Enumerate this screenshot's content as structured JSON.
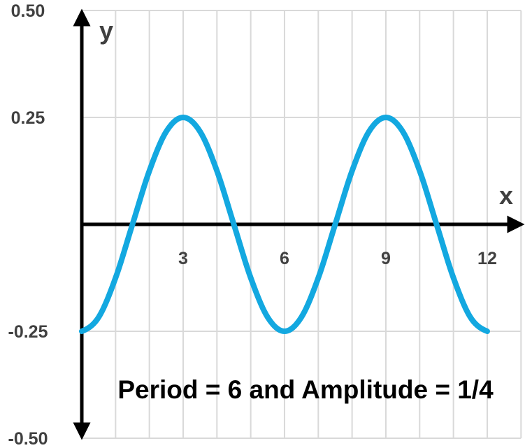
{
  "chart_data": {
    "type": "line",
    "xlabel": "x",
    "ylabel": "y",
    "xlim": [
      0,
      13
    ],
    "ylim": [
      -0.5,
      0.5
    ],
    "x_ticks": [
      3,
      6,
      9,
      12
    ],
    "y_ticks": [
      0.5,
      0.25,
      -0.25,
      -0.5
    ],
    "x_tick_labels": [
      "3",
      "6",
      "9",
      "12"
    ],
    "y_tick_labels": [
      "0.50",
      "0.25",
      "-0.25",
      "-0.50"
    ],
    "grid": true,
    "series": [
      {
        "x": [
          0,
          0.5,
          1,
          1.5,
          2,
          2.5,
          3,
          3.5,
          4,
          4.5,
          5,
          5.5,
          6,
          6.5,
          7,
          7.5,
          8,
          8.5,
          9,
          9.5,
          10,
          10.5,
          11,
          11.5,
          12
        ],
        "y": [
          -0.25,
          -0.217,
          -0.125,
          0,
          0.125,
          0.217,
          0.25,
          0.217,
          0.125,
          0,
          -0.125,
          -0.217,
          -0.25,
          -0.217,
          -0.125,
          0,
          0.125,
          0.217,
          0.25,
          0.217,
          0.125,
          0,
          -0.125,
          -0.217,
          -0.25
        ],
        "color": "#13a8e0"
      }
    ],
    "annotation": "Period = 6 and Amplitude = 1/4"
  },
  "colors": {
    "curve": "#13a8e0",
    "grid": "#d9d9d9",
    "axis": "#000000",
    "tick_text": "#404040"
  }
}
